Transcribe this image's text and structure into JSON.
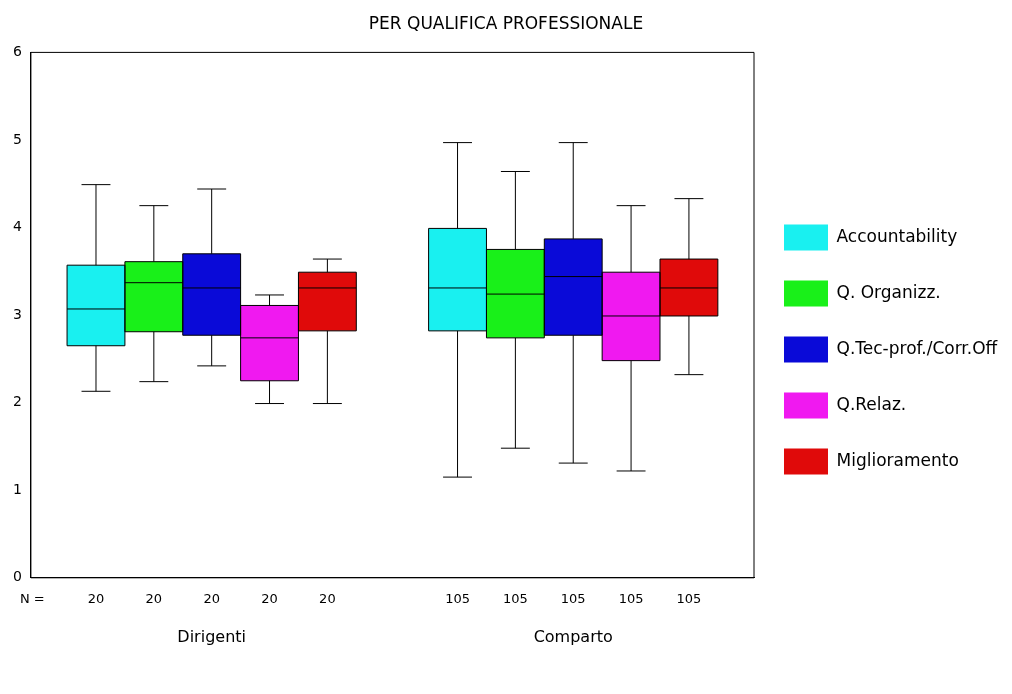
{
  "chart_data": {
    "type": "box",
    "title": "PER QUALIFICA PROFESSIONALE",
    "categories": [
      "Dirigenti",
      "Comparto"
    ],
    "series": [
      {
        "name": "Accountability",
        "color": "#19f0f0",
        "value_labels": [
          "20",
          "105"
        ],
        "boxes": [
          {
            "low": 2.13,
            "q1": 2.65,
            "median": 3.07,
            "q3": 3.57,
            "high": 4.49
          },
          {
            "low": 1.15,
            "q1": 2.82,
            "median": 3.31,
            "q3": 3.99,
            "high": 4.97
          }
        ]
      },
      {
        "name": "Q. Organizz.",
        "color": "#19f019",
        "value_labels": [
          "20",
          "105"
        ],
        "boxes": [
          {
            "low": 2.24,
            "q1": 2.81,
            "median": 3.37,
            "q3": 3.61,
            "high": 4.25
          },
          {
            "low": 1.48,
            "q1": 2.74,
            "median": 3.24,
            "q3": 3.75,
            "high": 4.64
          }
        ]
      },
      {
        "name": "Q.Tec-prof./Corr.Off",
        "color": "#0a0ad8",
        "value_labels": [
          "20",
          "105"
        ],
        "boxes": [
          {
            "low": 2.42,
            "q1": 2.77,
            "median": 3.31,
            "q3": 3.7,
            "high": 4.44
          },
          {
            "low": 1.31,
            "q1": 2.77,
            "median": 3.44,
            "q3": 3.87,
            "high": 4.97
          }
        ]
      },
      {
        "name": "Q.Relaz.",
        "color": "#f019f0",
        "value_labels": [
          "20",
          "105"
        ],
        "boxes": [
          {
            "low": 1.99,
            "q1": 2.25,
            "median": 2.74,
            "q3": 3.11,
            "high": 3.23
          },
          {
            "low": 1.22,
            "q1": 2.48,
            "median": 2.99,
            "q3": 3.49,
            "high": 4.25
          }
        ]
      },
      {
        "name": "Miglioramento",
        "color": "#e00a0a",
        "value_labels": [
          "20",
          "105"
        ],
        "boxes": [
          {
            "low": 1.99,
            "q1": 2.82,
            "median": 3.31,
            "q3": 3.49,
            "high": 3.64
          },
          {
            "low": 2.32,
            "q1": 2.99,
            "median": 3.31,
            "q3": 3.64,
            "high": 4.33
          }
        ]
      }
    ],
    "ylim": [
      0,
      6
    ],
    "yticks": [
      0,
      1,
      2,
      3,
      4,
      5,
      6
    ],
    "grid": false,
    "legend": "right",
    "annotations": [
      "N ="
    ]
  }
}
